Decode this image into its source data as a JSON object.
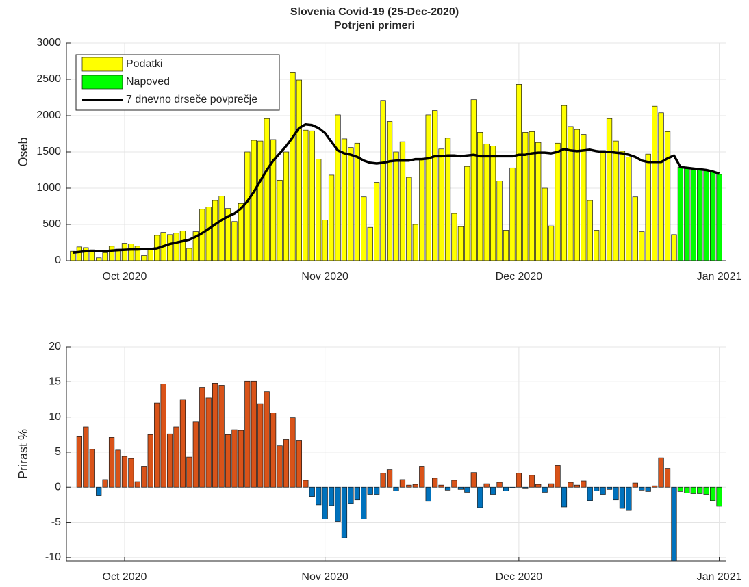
{
  "chart_data": [
    {
      "type": "bar",
      "title": "Slovenia Covid-19 (25-Dec-2020)",
      "subtitle": "Potrjeni primeri",
      "ylabel": "Oseb",
      "xlim": [
        -9,
        93
      ],
      "xticks": [
        {
          "value": 0,
          "label": "Oct 2020"
        },
        {
          "value": 31,
          "label": "Nov 2020"
        },
        {
          "value": 61,
          "label": "Dec 2020"
        },
        {
          "value": 92,
          "label": "Jan 2021"
        }
      ],
      "ylim": [
        0,
        3000
      ],
      "yticks": [
        0,
        500,
        1000,
        1500,
        2000,
        2500,
        3000
      ],
      "grid": true,
      "legend": "upper left",
      "series": [
        {
          "name": "Podatki",
          "color": "#ffff00",
          "x": [
            -8,
            -7,
            -6,
            -5,
            -4,
            -3,
            -2,
            -1,
            0,
            1,
            2,
            3,
            4,
            5,
            6,
            7,
            8,
            9,
            10,
            11,
            12,
            13,
            14,
            15,
            16,
            17,
            18,
            19,
            20,
            21,
            22,
            23,
            24,
            25,
            26,
            27,
            28,
            29,
            30,
            31,
            32,
            33,
            34,
            35,
            36,
            37,
            38,
            39,
            40,
            41,
            42,
            43,
            44,
            45,
            46,
            47,
            48,
            49,
            50,
            51,
            52,
            53,
            54,
            55,
            56,
            57,
            58,
            59,
            60,
            61,
            62,
            63,
            64,
            65,
            66,
            67,
            68,
            69,
            70,
            71,
            72,
            73,
            74,
            75,
            76,
            77,
            78,
            79,
            80,
            81,
            82,
            83,
            84,
            85
          ],
          "values": [
            130,
            190,
            180,
            150,
            40,
            110,
            200,
            160,
            240,
            230,
            200,
            70,
            170,
            350,
            390,
            360,
            380,
            410,
            170,
            400,
            710,
            740,
            830,
            890,
            720,
            540,
            790,
            1500,
            1660,
            1650,
            1960,
            1670,
            1110,
            1500,
            2600,
            2490,
            1800,
            1790,
            1400,
            560,
            1180,
            2010,
            1680,
            1560,
            1620,
            880,
            460,
            1080,
            2210,
            1920,
            1500,
            1640,
            1150,
            500,
            1400,
            2010,
            2070,
            1540,
            1690,
            650,
            470,
            1300,
            2220,
            1770,
            1610,
            1580,
            1100,
            420,
            1280,
            2430,
            1770,
            1780,
            1630,
            1000,
            480,
            1620,
            2140,
            1850,
            1810,
            1740,
            830,
            420,
            1520,
            1960,
            1650,
            1510,
            1430,
            880,
            400,
            1470,
            2130,
            2040,
            1780,
            360
          ]
        },
        {
          "name": "Napoved",
          "color": "#00ff00",
          "x": [
            86,
            87,
            88,
            89,
            90,
            91,
            92
          ],
          "values": [
            1290,
            1270,
            1260,
            1250,
            1240,
            1220,
            1190
          ]
        },
        {
          "name": "7 dnevno drseče povprečje",
          "color": "#000000",
          "type": "line",
          "x": [
            -8,
            -7,
            -6,
            -5,
            -4,
            -3,
            -2,
            -1,
            0,
            1,
            2,
            3,
            4,
            5,
            6,
            7,
            8,
            9,
            10,
            11,
            12,
            13,
            14,
            15,
            16,
            17,
            18,
            19,
            20,
            21,
            22,
            23,
            24,
            25,
            26,
            27,
            28,
            29,
            30,
            31,
            32,
            33,
            34,
            35,
            36,
            37,
            38,
            39,
            40,
            41,
            42,
            43,
            44,
            45,
            46,
            47,
            48,
            49,
            50,
            51,
            52,
            53,
            54,
            55,
            56,
            57,
            58,
            59,
            60,
            61,
            62,
            63,
            64,
            65,
            66,
            67,
            68,
            69,
            70,
            71,
            72,
            73,
            74,
            75,
            76,
            77,
            78,
            79,
            80,
            81,
            82,
            83,
            84,
            85,
            86,
            87,
            88,
            89,
            90,
            91,
            92
          ],
          "values": [
            110,
            120,
            130,
            130,
            130,
            130,
            140,
            145,
            150,
            155,
            155,
            160,
            160,
            170,
            200,
            230,
            250,
            270,
            290,
            330,
            380,
            440,
            500,
            560,
            610,
            650,
            720,
            820,
            950,
            1100,
            1250,
            1380,
            1480,
            1580,
            1700,
            1830,
            1880,
            1870,
            1830,
            1760,
            1640,
            1520,
            1480,
            1460,
            1430,
            1380,
            1350,
            1340,
            1350,
            1370,
            1380,
            1380,
            1380,
            1400,
            1400,
            1410,
            1440,
            1440,
            1450,
            1450,
            1440,
            1450,
            1460,
            1440,
            1440,
            1440,
            1440,
            1440,
            1440,
            1460,
            1460,
            1480,
            1490,
            1490,
            1480,
            1500,
            1540,
            1520,
            1510,
            1520,
            1530,
            1510,
            1500,
            1500,
            1490,
            1480,
            1460,
            1430,
            1380,
            1360,
            1360,
            1360,
            1410,
            1450,
            1290,
            1280,
            1270,
            1260,
            1250,
            1230,
            1200
          ]
        }
      ]
    },
    {
      "type": "bar",
      "ylabel": "Prirast %",
      "xlim": [
        -9,
        93
      ],
      "xticks": [
        {
          "value": 0,
          "label": "Oct 2020"
        },
        {
          "value": 31,
          "label": "Nov 2020"
        },
        {
          "value": 61,
          "label": "Dec 2020"
        },
        {
          "value": 92,
          "label": "Jan 2021"
        }
      ],
      "ylim": [
        -10.5,
        20
      ],
      "yticks": [
        -10,
        -5,
        0,
        5,
        10,
        15,
        20
      ],
      "grid": true,
      "series": [
        {
          "color_positive": "#d95319",
          "color_negative": "#0072bd",
          "x": [
            -7,
            -6,
            -5,
            -4,
            -3,
            -2,
            -1,
            0,
            1,
            2,
            3,
            4,
            5,
            6,
            7,
            8,
            9,
            10,
            11,
            12,
            13,
            14,
            15,
            16,
            17,
            18,
            19,
            20,
            21,
            22,
            23,
            24,
            25,
            26,
            27,
            28,
            29,
            30,
            31,
            32,
            33,
            34,
            35,
            36,
            37,
            38,
            39,
            40,
            41,
            42,
            43,
            44,
            45,
            46,
            47,
            48,
            49,
            50,
            51,
            52,
            53,
            54,
            55,
            56,
            57,
            58,
            59,
            60,
            61,
            62,
            63,
            64,
            65,
            66,
            67,
            68,
            69,
            70,
            71,
            72,
            73,
            74,
            75,
            76,
            77,
            78,
            79,
            80,
            81,
            82,
            83,
            84,
            85
          ],
          "values": [
            7.2,
            8.6,
            5.4,
            -1.2,
            1.1,
            7.1,
            5.3,
            4.4,
            4.1,
            0.8,
            3.0,
            7.5,
            12.0,
            14.7,
            7.6,
            8.6,
            12.5,
            4.3,
            9.3,
            14.2,
            12.7,
            14.8,
            14.5,
            7.5,
            8.2,
            8.1,
            15.1,
            15.1,
            11.9,
            13.6,
            10.6,
            5.9,
            6.8,
            9.9,
            6.7,
            1.0,
            -1.3,
            -2.5,
            -4.5,
            -2.6,
            -4.9,
            -7.2,
            -2.3,
            -1.8,
            -4.5,
            -1.0,
            -1.0,
            2.0,
            2.5,
            -0.5,
            1.1,
            0.3,
            0.4,
            3.0,
            -2.0,
            1.3,
            0.3,
            -0.4,
            1.0,
            -0.3,
            -0.7,
            2.1,
            -2.9,
            0.5,
            -1.0,
            0.7,
            -0.5,
            -0.1,
            2.0,
            -0.2,
            1.7,
            0.4,
            -0.7,
            0.5,
            3.1,
            -2.8,
            0.7,
            0.3,
            0.9,
            -1.9,
            -0.5,
            -1.0,
            -0.3,
            -1.8,
            -3.0,
            -3.3,
            0.6,
            -0.4,
            -0.6,
            0.2,
            4.2,
            2.7,
            -10.5
          ]
        },
        {
          "color": "#00ff00",
          "x": [
            86,
            87,
            88,
            89,
            90,
            91,
            92
          ],
          "values": [
            -0.6,
            -0.8,
            -0.9,
            -0.9,
            -1.0,
            -1.9,
            -2.7
          ]
        }
      ]
    }
  ]
}
